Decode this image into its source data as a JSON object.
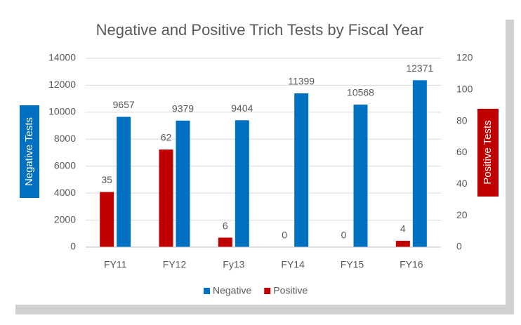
{
  "chart_data": {
    "type": "bar",
    "title": "Negative and Positive Trich Tests by Fiscal Year",
    "y_label": "Negative Tests",
    "y2_label": "Positive Tests",
    "categories": [
      "FY11",
      "FY12",
      "Fy13",
      "FY14",
      "FY15",
      "FY16"
    ],
    "series": [
      {
        "name": "Negative",
        "color": "#0070c0",
        "values": [
          9657,
          9379,
          9404,
          11399,
          10568,
          12371
        ]
      },
      {
        "name": "Positive",
        "color": "#c00000",
        "axis": "y2",
        "values": [
          35,
          62,
          6,
          0,
          0,
          4
        ]
      }
    ],
    "ylim": [
      0,
      14000
    ],
    "yticks": [
      0,
      2000,
      4000,
      6000,
      8000,
      10000,
      12000,
      14000
    ],
    "y2lim": [
      0,
      120
    ],
    "y2ticks": [
      0,
      20,
      40,
      60,
      80,
      100,
      120
    ],
    "grid": true,
    "legend": "bottom"
  }
}
